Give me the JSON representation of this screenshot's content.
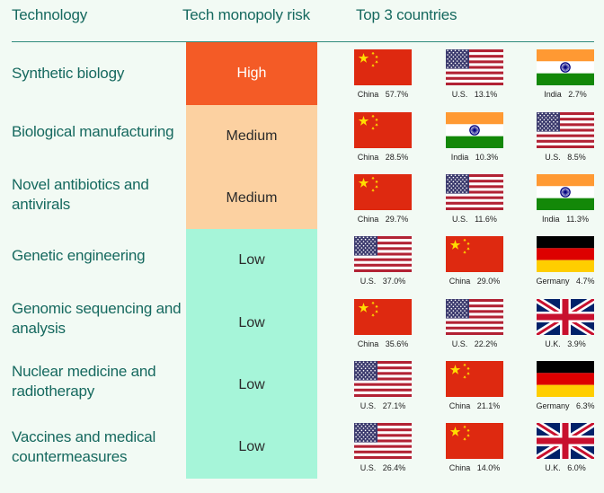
{
  "header": {
    "col_technology": "Technology",
    "col_risk": "Tech monopoly risk",
    "col_countries": "Top 3 countries"
  },
  "colors": {
    "text": "#16695f",
    "high": "#f45b26",
    "medium": "#fcd1a1",
    "low": "#a6f5d9",
    "background": "#f2faf4"
  },
  "chart_data": {
    "type": "table",
    "columns": [
      "Technology",
      "Tech monopoly risk",
      "Top 3 countries"
    ],
    "rows": [
      {
        "technology": "Synthetic biology",
        "risk": "High",
        "countries": [
          {
            "name": "China",
            "share": "57.7%",
            "flag": "china"
          },
          {
            "name": "U.S.",
            "share": "13.1%",
            "flag": "us"
          },
          {
            "name": "India",
            "share": "2.7%",
            "flag": "india"
          }
        ]
      },
      {
        "technology": "Biological manufacturing",
        "risk": "Medium",
        "countries": [
          {
            "name": "China",
            "share": "28.5%",
            "flag": "china"
          },
          {
            "name": "India",
            "share": "10.3%",
            "flag": "india"
          },
          {
            "name": "U.S.",
            "share": "8.5%",
            "flag": "us"
          }
        ]
      },
      {
        "technology": "Novel antibiotics and antivirals",
        "risk": "Medium",
        "countries": [
          {
            "name": "China",
            "share": "29.7%",
            "flag": "china"
          },
          {
            "name": "U.S.",
            "share": "11.6%",
            "flag": "us"
          },
          {
            "name": "India",
            "share": "11.3%",
            "flag": "india"
          }
        ]
      },
      {
        "technology": "Genetic engineering",
        "risk": "Low",
        "countries": [
          {
            "name": "U.S.",
            "share": "37.0%",
            "flag": "us"
          },
          {
            "name": "China",
            "share": "29.0%",
            "flag": "china"
          },
          {
            "name": "Germany",
            "share": "4.7%",
            "flag": "germany"
          }
        ]
      },
      {
        "technology": "Genomic sequencing and analysis",
        "risk": "Low",
        "countries": [
          {
            "name": "China",
            "share": "35.6%",
            "flag": "china"
          },
          {
            "name": "U.S.",
            "share": "22.2%",
            "flag": "us"
          },
          {
            "name": "U.K.",
            "share": "3.9%",
            "flag": "uk"
          }
        ]
      },
      {
        "technology": "Nuclear medicine and radiotherapy",
        "risk": "Low",
        "countries": [
          {
            "name": "U.S.",
            "share": "27.1%",
            "flag": "us"
          },
          {
            "name": "China",
            "share": "21.1%",
            "flag": "china"
          },
          {
            "name": "Germany",
            "share": "6.3%",
            "flag": "germany"
          }
        ]
      },
      {
        "technology": "Vaccines and medical countermeasures",
        "risk": "Low",
        "countries": [
          {
            "name": "U.S.",
            "share": "26.4%",
            "flag": "us"
          },
          {
            "name": "China",
            "share": "14.0%",
            "flag": "china"
          },
          {
            "name": "U.K.",
            "share": "6.0%",
            "flag": "uk"
          }
        ]
      }
    ]
  }
}
